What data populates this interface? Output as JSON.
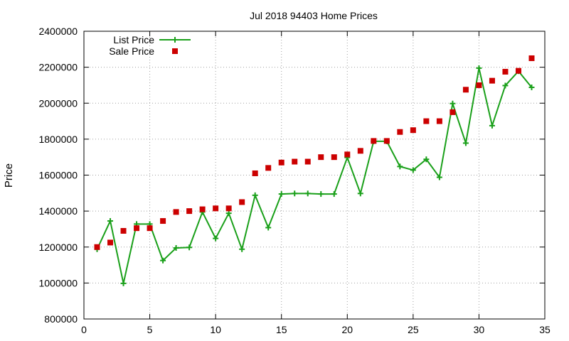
{
  "chart_data": {
    "type": "line",
    "title": "Jul 2018 94403 Home Prices",
    "xlabel": "",
    "ylabel": "Price",
    "xlim": [
      0,
      35
    ],
    "ylim": [
      800000,
      2400000
    ],
    "xticks": [
      0,
      5,
      10,
      15,
      20,
      25,
      30,
      35
    ],
    "yticks": [
      800000,
      1000000,
      1200000,
      1400000,
      1600000,
      1800000,
      2000000,
      2200000,
      2400000
    ],
    "grid": true,
    "legend_position": "top-left",
    "series": [
      {
        "name": "List Price",
        "style": "line-points",
        "color": "#1aa01a",
        "x": [
          1,
          2,
          3,
          4,
          5,
          6,
          7,
          8,
          9,
          10,
          11,
          12,
          13,
          14,
          15,
          16,
          17,
          18,
          19,
          20,
          21,
          22,
          23,
          24,
          25,
          26,
          27,
          28,
          29,
          30,
          31,
          32,
          33,
          34
        ],
        "y": [
          1188000,
          1345000,
          998000,
          1328000,
          1328000,
          1125000,
          1195000,
          1198000,
          1395000,
          1248000,
          1388000,
          1188000,
          1488000,
          1308000,
          1495000,
          1498000,
          1498000,
          1495000,
          1495000,
          1698000,
          1498000,
          1788000,
          1788000,
          1648000,
          1628000,
          1688000,
          1588000,
          1998000,
          1778000,
          2195000,
          1875000,
          2098000,
          2178000,
          2088000
        ]
      },
      {
        "name": "Sale Price",
        "style": "points",
        "color": "#cc0000",
        "x": [
          1,
          2,
          3,
          4,
          5,
          6,
          7,
          8,
          9,
          10,
          11,
          12,
          13,
          14,
          15,
          16,
          17,
          18,
          19,
          20,
          21,
          22,
          23,
          24,
          25,
          26,
          27,
          28,
          29,
          30,
          31,
          32,
          33,
          34
        ],
        "y": [
          1200000,
          1225000,
          1290000,
          1305000,
          1305000,
          1345000,
          1395000,
          1400000,
          1410000,
          1415000,
          1415000,
          1450000,
          1610000,
          1640000,
          1670000,
          1675000,
          1675000,
          1700000,
          1700000,
          1715000,
          1735000,
          1790000,
          1790000,
          1840000,
          1850000,
          1900000,
          1900000,
          1950000,
          2075000,
          2100000,
          2125000,
          2175000,
          2180000,
          2250000
        ]
      }
    ]
  }
}
